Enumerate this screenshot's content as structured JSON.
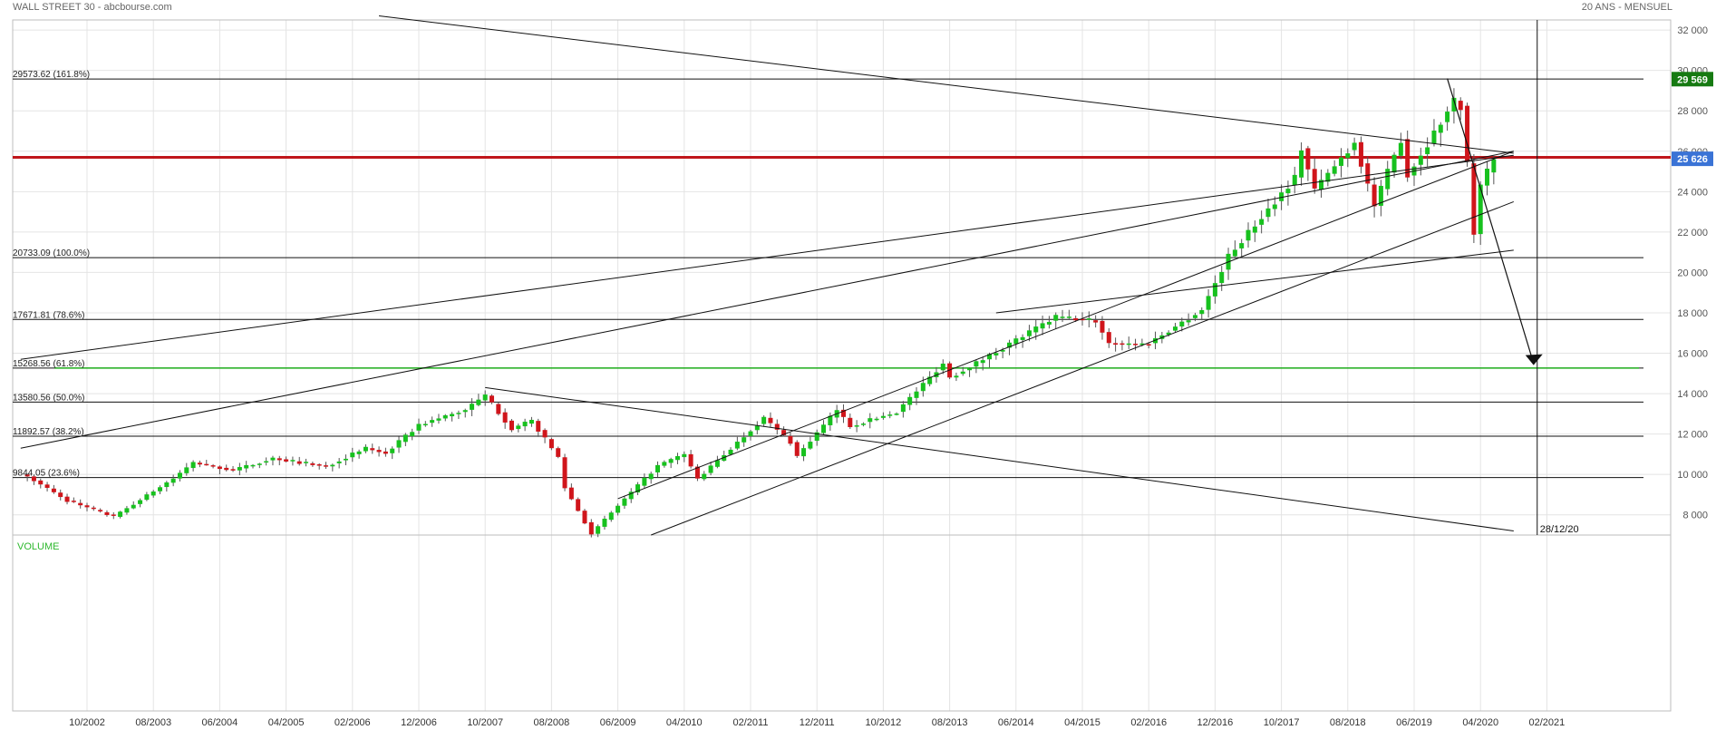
{
  "header": {
    "title": "WALL STREET 30 - abcbourse.com",
    "period": "20 ANS - MENSUEL"
  },
  "volume_label": "VOLUME",
  "colors": {
    "up": "#17c11e",
    "down": "#d0151b",
    "red_line": "#c0161b",
    "green_line": "#22b11f",
    "price_tag": "#3a73d6",
    "high_tag": "#167a12"
  },
  "chart_data": {
    "type": "candlestick",
    "x_tick_labels": [
      "10/2002",
      "08/2003",
      "06/2004",
      "04/2005",
      "02/2006",
      "12/2006",
      "10/2007",
      "08/2008",
      "06/2009",
      "04/2010",
      "02/2011",
      "12/2011",
      "10/2012",
      "08/2013",
      "06/2014",
      "04/2015",
      "02/2016",
      "12/2016",
      "10/2017",
      "08/2018",
      "06/2019",
      "04/2020",
      "02/2021"
    ],
    "y_ticks": [
      8000,
      10000,
      12000,
      14000,
      16000,
      18000,
      20000,
      22000,
      24000,
      26000,
      28000,
      30000,
      32000
    ],
    "y_tick_labels": [
      "8 000",
      "10 000",
      "12 000",
      "14 000",
      "16 000",
      "18 000",
      "20 000",
      "22 000",
      "24 000",
      "26 000",
      "28 000",
      "30 000",
      "32 000"
    ],
    "ylim": [
      7000,
      32500
    ],
    "fib_levels": [
      {
        "value": 29573.62,
        "label": "29573.62  (161.8%)"
      },
      {
        "value": 20733.09,
        "label": "20733.09  (100.0%)"
      },
      {
        "value": 17671.81,
        "label": "17671.81  (78.6%)"
      },
      {
        "value": 15268.56,
        "label": "15268.56  (61.8%)"
      },
      {
        "value": 13580.56,
        "label": "13580.56  (50.0%)"
      },
      {
        "value": 11892.57,
        "label": "11892.57  (38.2%)"
      },
      {
        "value": 9844.05,
        "label": "9844.05  (23.6%)"
      }
    ],
    "horizontal_lines": [
      {
        "value": 25700,
        "style": "red"
      },
      {
        "value": 15268.56,
        "style": "green"
      }
    ],
    "price_tags": [
      {
        "label": "29 569",
        "value": 29569,
        "style": "high"
      },
      {
        "label": "25 626",
        "value": 25626,
        "style": "last"
      }
    ],
    "date_marker": {
      "label": "28/12/20",
      "date": "2020-12"
    },
    "anchors": [
      {
        "date": "2002-01",
        "value": 9900
      },
      {
        "date": "2002-07",
        "value": 8700
      },
      {
        "date": "2003-02",
        "value": 7900
      },
      {
        "date": "2003-11",
        "value": 9800
      },
      {
        "date": "2004-02",
        "value": 10580
      },
      {
        "date": "2004-08",
        "value": 10200
      },
      {
        "date": "2005-02",
        "value": 10800
      },
      {
        "date": "2005-10",
        "value": 10400
      },
      {
        "date": "2006-04",
        "value": 11300
      },
      {
        "date": "2006-07",
        "value": 11050
      },
      {
        "date": "2006-12",
        "value": 12450
      },
      {
        "date": "2007-07",
        "value": 13200
      },
      {
        "date": "2007-10",
        "value": 13900
      },
      {
        "date": "2008-02",
        "value": 12250
      },
      {
        "date": "2008-05",
        "value": 12650
      },
      {
        "date": "2008-09",
        "value": 10850
      },
      {
        "date": "2008-10",
        "value": 9350
      },
      {
        "date": "2009-02",
        "value": 7060
      },
      {
        "date": "2009-06",
        "value": 8450
      },
      {
        "date": "2009-12",
        "value": 10430
      },
      {
        "date": "2010-04",
        "value": 11000
      },
      {
        "date": "2010-06",
        "value": 9770
      },
      {
        "date": "2011-04",
        "value": 12800
      },
      {
        "date": "2011-08",
        "value": 11600
      },
      {
        "date": "2011-09",
        "value": 10900
      },
      {
        "date": "2012-03",
        "value": 13200
      },
      {
        "date": "2012-05",
        "value": 12400
      },
      {
        "date": "2012-12",
        "value": 13100
      },
      {
        "date": "2013-07",
        "value": 15500
      },
      {
        "date": "2013-08",
        "value": 14800
      },
      {
        "date": "2014-01",
        "value": 15700
      },
      {
        "date": "2014-12",
        "value": 17800
      },
      {
        "date": "2015-06",
        "value": 17600
      },
      {
        "date": "2015-08",
        "value": 16500
      },
      {
        "date": "2016-01",
        "value": 16450
      },
      {
        "date": "2016-02",
        "value": 16500
      },
      {
        "date": "2016-10",
        "value": 18150
      },
      {
        "date": "2017-02",
        "value": 20800
      },
      {
        "date": "2017-12",
        "value": 24700
      },
      {
        "date": "2018-01",
        "value": 26150
      },
      {
        "date": "2018-03",
        "value": 24100
      },
      {
        "date": "2018-09",
        "value": 26450
      },
      {
        "date": "2018-12",
        "value": 23300
      },
      {
        "date": "2019-04",
        "value": 26600
      },
      {
        "date": "2019-05",
        "value": 24800
      },
      {
        "date": "2019-12",
        "value": 28500
      },
      {
        "date": "2020-01",
        "value": 28250
      },
      {
        "date": "2020-02",
        "value": 25400
      },
      {
        "date": "2020-03",
        "value": 21900
      },
      {
        "date": "2020-04",
        "value": 24300
      },
      {
        "date": "2020-06",
        "value": 25600
      }
    ],
    "trendlines": [
      {
        "from": {
          "date": "2001-12",
          "value": 11300
        },
        "to": {
          "date": "2020-09",
          "value": 26000
        }
      },
      {
        "from": {
          "date": "2001-12",
          "value": 15700
        },
        "to": {
          "date": "2020-09",
          "value": 25800
        }
      },
      {
        "from": {
          "date": "2009-06",
          "value": 8800
        },
        "to": {
          "date": "2020-09",
          "value": 26000
        }
      },
      {
        "from": {
          "date": "2009-11",
          "value": 7000
        },
        "to": {
          "date": "2020-09",
          "value": 23500
        }
      },
      {
        "from": {
          "date": "2014-03",
          "value": 18000
        },
        "to": {
          "date": "2020-09",
          "value": 21100
        }
      },
      {
        "from": {
          "date": "2007-10",
          "value": 14300
        },
        "to": {
          "date": "2020-09",
          "value": 7200
        }
      },
      {
        "from": {
          "date": "2006-06",
          "value": 32700
        },
        "to": {
          "date": "2020-09",
          "value": 25900
        }
      }
    ],
    "arrow": {
      "from": {
        "date": "2019-11",
        "value": 29600
      },
      "to": {
        "date": "2020-12",
        "value": 15500
      }
    }
  }
}
